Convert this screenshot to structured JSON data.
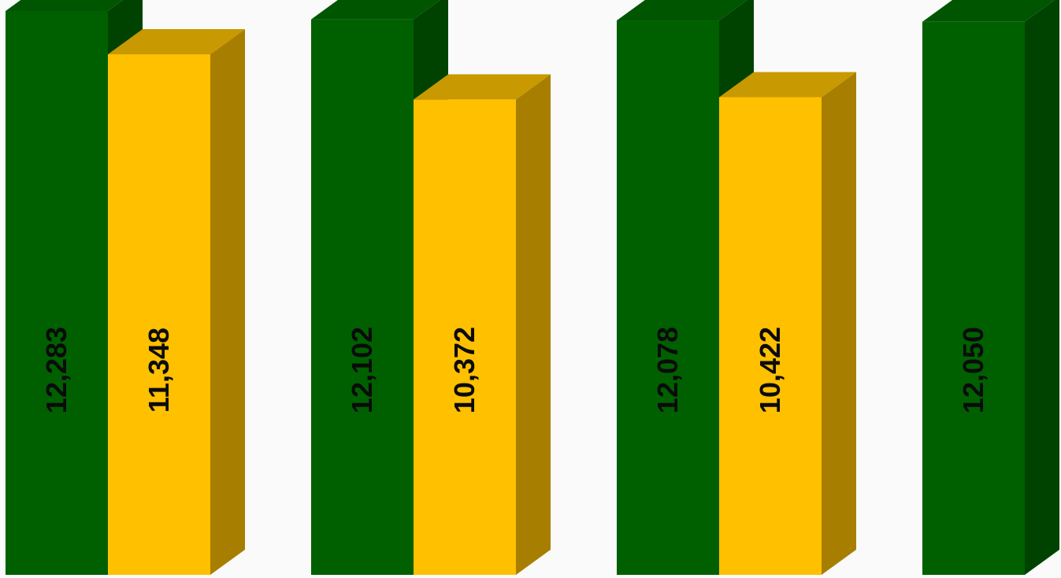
{
  "chart_data": {
    "type": "bar",
    "style": "3d-clustered",
    "series": [
      {
        "values": [
          12283,
          12102,
          12078,
          12050
        ],
        "labels": [
          "12,283",
          "12,102",
          "12,078",
          "12,050"
        ]
      },
      {
        "values": [
          11348,
          10372,
          10422,
          null
        ],
        "labels": [
          "11,348",
          "10,372",
          "10,422",
          null
        ]
      }
    ],
    "colors": {
      "series_0": {
        "front": "#006000",
        "top": "#005600",
        "side": "#004200"
      },
      "series_1": {
        "front": "#ffc000",
        "top": "#c89900",
        "side": "#a87e00"
      },
      "background": "#f9faf9"
    },
    "legend": "none",
    "grid": false
  }
}
